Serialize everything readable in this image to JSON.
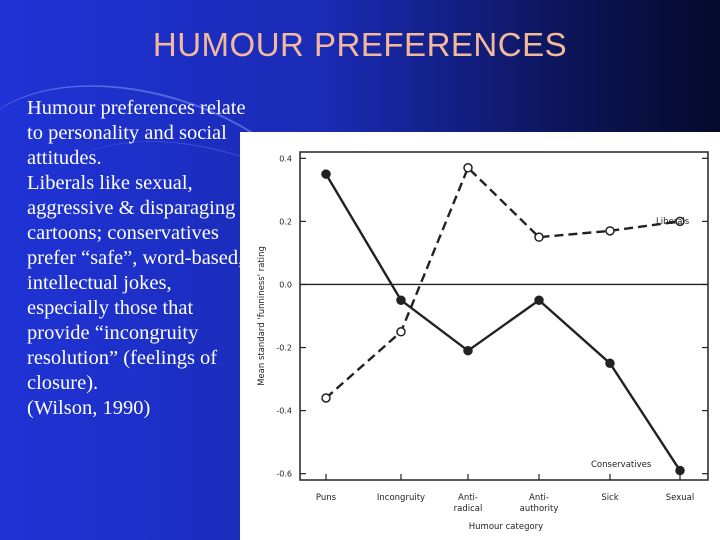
{
  "slide": {
    "title": "HUMOUR PREFERENCES",
    "paragraphs": [
      "Humour preferences relate to personality and social attitudes.",
      "Liberals like sexual, aggressive & disparaging cartoons; conservatives prefer “safe”, word-based, intellectual jokes, especially those that provide “incongruity resolution” (feelings of closure).",
      "(Wilson, 1990)"
    ]
  },
  "chart_data": {
    "type": "line",
    "categories": [
      "Puns",
      "Incongruity",
      "Anti-\nradical",
      "Anti-\nauthority",
      "Sick",
      "Sexual"
    ],
    "xlabel": "Humour category",
    "ylabel": "Mean standard 'funniness' rating",
    "ylim": [
      -0.62,
      0.42
    ],
    "yticks": [
      0.4,
      0.2,
      0.0,
      -0.2,
      -0.4,
      -0.6
    ],
    "ytick_labels": [
      "0.4",
      "0.2",
      "0.0",
      "-0.2",
      "-0.4",
      "-0.6"
    ],
    "series": [
      {
        "name": "Liberals",
        "values": [
          -0.36,
          -0.15,
          0.37,
          0.15,
          0.17,
          0.2
        ],
        "style": "dashed",
        "marker": "open-circle"
      },
      {
        "name": "Conservatives",
        "values": [
          0.35,
          -0.05,
          -0.21,
          -0.05,
          -0.25,
          -0.59
        ],
        "style": "solid",
        "marker": "filled-circle"
      }
    ],
    "colors": {
      "line": "#222222",
      "background": "#ffffff"
    }
  }
}
